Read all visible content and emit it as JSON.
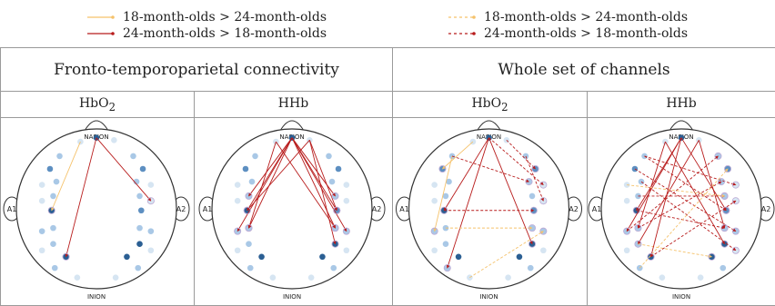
{
  "legend": [
    {
      "label": "18-month-olds > 24-month-olds",
      "color": "#f5c26b",
      "style": "solid"
    },
    {
      "label": "24-month-olds > 18-month-olds",
      "color": "#b81c1c",
      "style": "solid"
    },
    {
      "label": "18-month-olds > 24-month-olds",
      "color": "#f5c26b",
      "style": "dashed"
    },
    {
      "label": "24-month-olds > 18-month-olds",
      "color": "#b81c1c",
      "style": "dashed"
    }
  ],
  "groups": [
    "Fronto-temporoparietal connectivity",
    "Whole set of channels"
  ],
  "subheaders": [
    {
      "base": "HbO",
      "sub": "2"
    },
    {
      "base": "HHb",
      "sub": ""
    },
    {
      "base": "HbO",
      "sub": "2"
    },
    {
      "base": "HHb",
      "sub": ""
    }
  ],
  "landmarks": {
    "top": "NASION",
    "bottom": "INION",
    "left": "A1",
    "right": "A2"
  },
  "colors": {
    "older_greater": "#b81c1c",
    "younger_greater": "#f5c26b",
    "channel_dark": "#2b5f93",
    "channel_mid": "#5d8fc1",
    "channel_light": "#a9c8e6",
    "channel_pale": "#d6e5f2"
  }
}
